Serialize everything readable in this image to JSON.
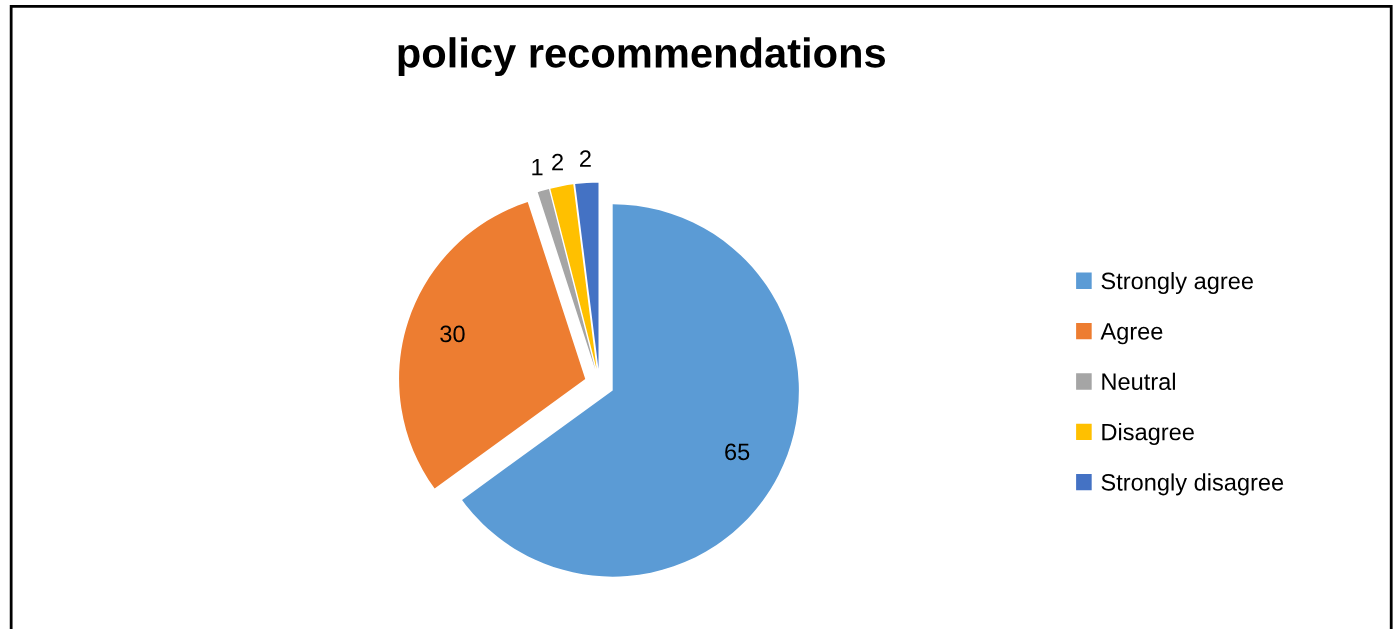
{
  "chart_data": {
    "type": "pie",
    "title": "policy recommendations",
    "categories": [
      "Strongly agree",
      "Agree",
      "Neutral",
      "Disagree",
      "Strongly disagree"
    ],
    "values": [
      65,
      30,
      1,
      2,
      2
    ],
    "colors": [
      "#5b9bd5",
      "#ed7d31",
      "#a5a5a5",
      "#ffc000",
      "#4472c4"
    ],
    "data_labels": true,
    "legend": "right"
  }
}
